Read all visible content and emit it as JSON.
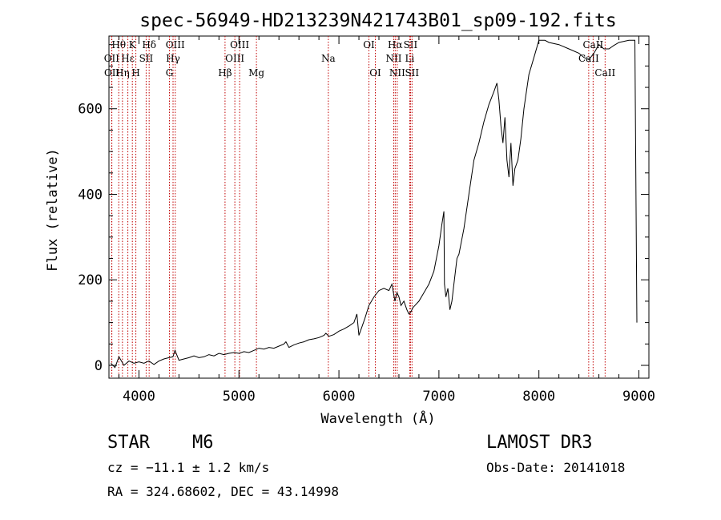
{
  "chart_data": {
    "type": "line",
    "title": "spec-56949-HD213239N421743B01_sp09-192.fits",
    "xlabel": "Wavelength (Å)",
    "ylabel": "Flux (relative)",
    "xlim": [
      3700,
      9100
    ],
    "ylim": [
      -30,
      770
    ],
    "xticks": [
      4000,
      5000,
      6000,
      7000,
      8000,
      9000
    ],
    "yticks": [
      0,
      200,
      400,
      600
    ],
    "series": [
      {
        "name": "flux",
        "x": [
          3720,
          3760,
          3800,
          3850,
          3900,
          3950,
          4000,
          4050,
          4100,
          4150,
          4200,
          4250,
          4300,
          4340,
          4360,
          4400,
          4450,
          4500,
          4550,
          4600,
          4650,
          4700,
          4750,
          4800,
          4850,
          4900,
          4950,
          5000,
          5050,
          5100,
          5150,
          5200,
          5250,
          5300,
          5350,
          5400,
          5450,
          5470,
          5500,
          5550,
          5600,
          5650,
          5700,
          5750,
          5800,
          5850,
          5870,
          5900,
          5950,
          6000,
          6050,
          6100,
          6150,
          6180,
          6200,
          6230,
          6260,
          6300,
          6350,
          6400,
          6450,
          6500,
          6530,
          6560,
          6580,
          6600,
          6620,
          6650,
          6680,
          6700,
          6720,
          6740,
          6760,
          6800,
          6850,
          6900,
          6950,
          7000,
          7030,
          7050,
          7055,
          7070,
          7090,
          7110,
          7130,
          7150,
          7180,
          7200,
          7250,
          7300,
          7350,
          7400,
          7450,
          7500,
          7550,
          7580,
          7600,
          7620,
          7640,
          7660,
          7680,
          7700,
          7720,
          7740,
          7760,
          7790,
          7820,
          7850,
          7900,
          7950,
          8000,
          8030,
          8060,
          8100,
          8200,
          8300,
          8400,
          8450,
          8500,
          8550,
          8600,
          8650,
          8700,
          8750,
          8800,
          8900,
          8960,
          8980
        ],
        "y": [
          5,
          -5,
          20,
          0,
          10,
          5,
          8,
          5,
          10,
          2,
          10,
          15,
          18,
          20,
          35,
          12,
          15,
          18,
          22,
          18,
          20,
          25,
          22,
          28,
          25,
          28,
          30,
          28,
          32,
          30,
          35,
          40,
          38,
          42,
          40,
          45,
          50,
          55,
          42,
          48,
          52,
          55,
          60,
          62,
          65,
          70,
          75,
          68,
          72,
          80,
          85,
          92,
          100,
          120,
          70,
          90,
          110,
          140,
          160,
          175,
          180,
          175,
          190,
          150,
          170,
          160,
          140,
          150,
          130,
          120,
          125,
          135,
          140,
          150,
          170,
          190,
          220,
          280,
          330,
          360,
          190,
          160,
          180,
          130,
          150,
          190,
          250,
          260,
          320,
          400,
          480,
          520,
          570,
          610,
          640,
          660,
          620,
          560,
          520,
          580,
          480,
          440,
          520,
          420,
          460,
          480,
          530,
          600,
          680,
          720,
          760,
          760,
          760,
          755,
          750,
          740,
          730,
          720,
          715,
          730,
          750,
          740,
          740,
          748,
          755,
          760,
          760,
          100
        ]
      }
    ],
    "lines": [
      {
        "name": "Hθ",
        "x": 3798,
        "row": 0
      },
      {
        "name": "OII",
        "x": 3727,
        "row": 1
      },
      {
        "name": "OII",
        "x": 3729,
        "row": 2
      },
      {
        "name": "Hε",
        "x": 3889,
        "row": 1
      },
      {
        "name": "Hη",
        "x": 3835,
        "row": 2
      },
      {
        "name": "K",
        "x": 3934,
        "row": 0
      },
      {
        "name": "H",
        "x": 3969,
        "row": 2
      },
      {
        "name": "SII",
        "x": 4072,
        "row": 1
      },
      {
        "name": "Hδ",
        "x": 4102,
        "row": 0
      },
      {
        "name": "OIII",
        "x": 4363,
        "row": 0
      },
      {
        "name": "Hγ",
        "x": 4341,
        "row": 1
      },
      {
        "name": "G",
        "x": 4305,
        "row": 2
      },
      {
        "name": "Hβ",
        "x": 4861,
        "row": 2
      },
      {
        "name": "OIII",
        "x": 4959,
        "row": 1
      },
      {
        "name": "OIII",
        "x": 5007,
        "row": 0
      },
      {
        "name": "Mg",
        "x": 5175,
        "row": 2
      },
      {
        "name": "Na",
        "x": 5894,
        "row": 1
      },
      {
        "name": "OI",
        "x": 6300,
        "row": 0
      },
      {
        "name": "OI",
        "x": 6364,
        "row": 2
      },
      {
        "name": "NII",
        "x": 6548,
        "row": 1
      },
      {
        "name": "Hα",
        "x": 6563,
        "row": 0
      },
      {
        "name": "NII",
        "x": 6583,
        "row": 2
      },
      {
        "name": "Li",
        "x": 6708,
        "row": 1
      },
      {
        "name": "SII",
        "x": 6716,
        "row": 0
      },
      {
        "name": "SII",
        "x": 6731,
        "row": 2
      },
      {
        "name": "CaII",
        "x": 8498,
        "row": 1
      },
      {
        "name": "CaII",
        "x": 8542,
        "row": 0
      },
      {
        "name": "CaII",
        "x": 8662,
        "row": 2
      }
    ]
  },
  "info": {
    "class": "STAR",
    "subclass": "M6",
    "survey": "LAMOST DR3",
    "cz": "cz = −11.1 ± 1.2 km/s",
    "obs_date": "Obs-Date: 20141018",
    "radec": "RA = 324.68602, DEC =  43.14998"
  },
  "colors": {
    "ink": "#000000",
    "line_marker": "#c00000"
  }
}
